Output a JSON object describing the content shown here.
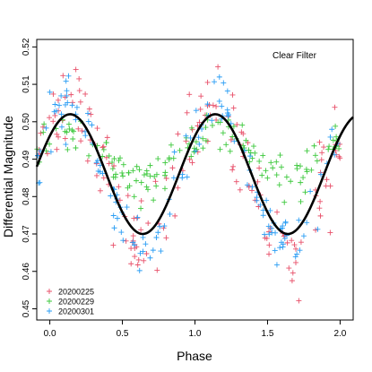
{
  "chart_data": {
    "type": "scatter",
    "title": "",
    "xlabel": "Phase",
    "ylabel": "Differential Magnitude",
    "annotation": "Clear Filter",
    "xlim": [
      -0.09,
      2.09
    ],
    "ylim": [
      0.447,
      0.522
    ],
    "x_ticks": [
      0.0,
      0.5,
      1.0,
      1.5,
      2.0
    ],
    "x_tick_labels": [
      "0.0",
      "0.5",
      "1.0",
      "1.5",
      "2.0"
    ],
    "y_ticks": [
      0.45,
      0.46,
      0.47,
      0.48,
      0.49,
      0.5,
      0.51,
      0.52
    ],
    "y_tick_labels": [
      "0.45",
      "0.46",
      "0.47",
      "0.48",
      "0.49",
      "0.50",
      "0.51",
      "0.52"
    ],
    "grid": false,
    "legend_position": "bottom-left",
    "marker": "+",
    "series": [
      {
        "name": "20200225",
        "color": "#e8506a",
        "mean": 0.486,
        "amplitude": 0.018,
        "phase_of_max": 0.14,
        "scatter": 0.009,
        "points_per_cycle": 80
      },
      {
        "name": "20200229",
        "color": "#3cc83c",
        "mean": 0.491,
        "amplitude": 0.007,
        "phase_of_max": 0.14,
        "scatter": 0.004,
        "points_per_cycle": 70
      },
      {
        "name": "20200301",
        "color": "#2a9df4",
        "mean": 0.485,
        "amplitude": 0.019,
        "phase_of_max": 0.14,
        "scatter": 0.006,
        "points_per_cycle": 70
      }
    ],
    "fit_curve": {
      "mean": 0.486,
      "amplitude": 0.016,
      "phase_of_max": 0.14,
      "color": "#000000"
    }
  }
}
